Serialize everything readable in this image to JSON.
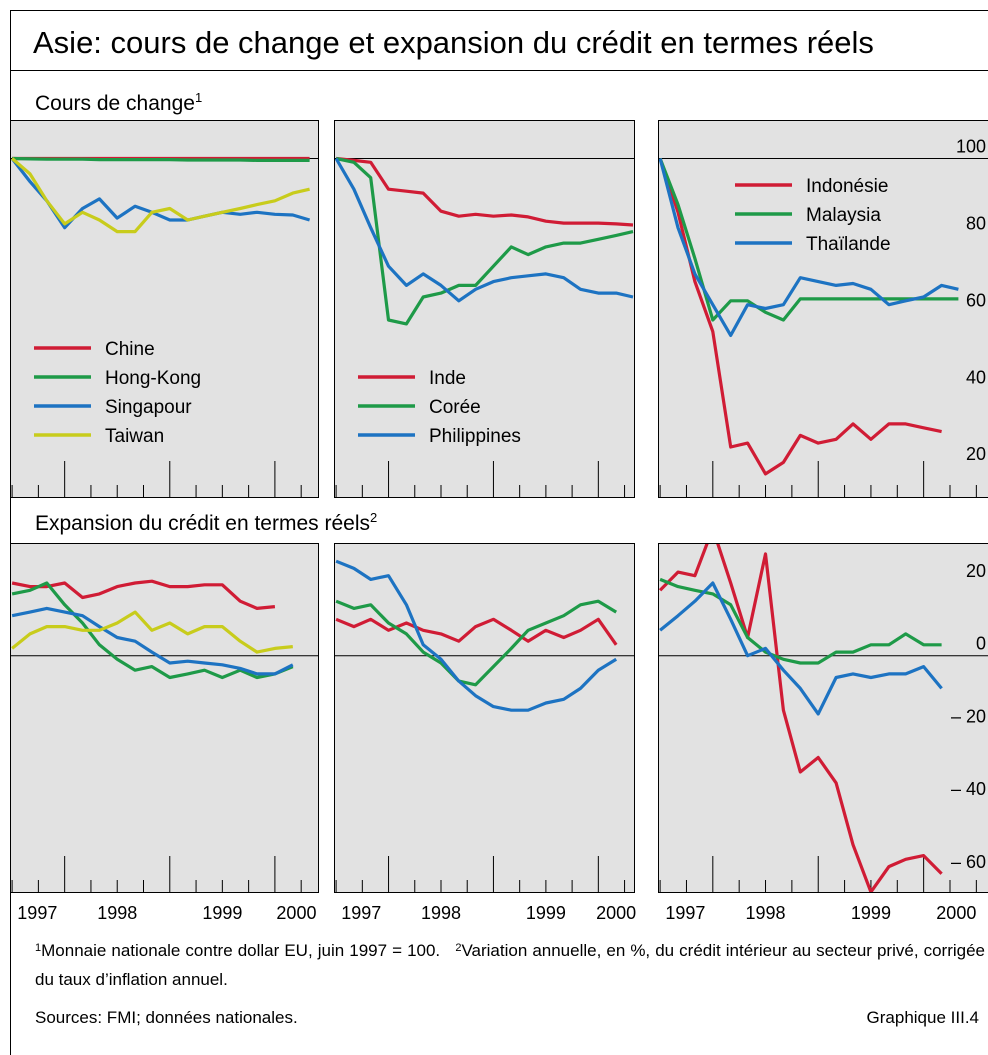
{
  "title": "Asie: cours de change et expansion du crédit en termes réels",
  "sections": [
    {
      "title": "Cours de change",
      "mark": "1"
    },
    {
      "title": "Expansion du crédit en termes réels",
      "mark": "2"
    }
  ],
  "footnotes": [
    {
      "mark": "1",
      "text": "Monnaie nationale contre dollar EU, juin 1997 = 100."
    },
    {
      "mark": "2",
      "text": "Variation annuelle, en %, du crédit intérieur au secteur privé, corrigée du taux d’inflation annuel."
    }
  ],
  "sources": "Sources: FMI; données nationales.",
  "figure_label": "Graphique III.4",
  "chart_data": [
    {
      "type": "line",
      "x": [
        1997.5,
        1997.67,
        1997.83,
        1998,
        1998.17,
        1998.33,
        1998.5,
        1998.67,
        1998.83,
        1999,
        1999.17,
        1999.33,
        1999.5,
        1999.67,
        1999.83,
        2000,
        2000.17,
        2000.33
      ],
      "xlim": [
        1997.48,
        2000.41
      ],
      "xticks": [
        1998,
        1999,
        2000
      ],
      "xminorticks": [
        1997.5,
        1997.75,
        1998.25,
        1998.5,
        1998.75,
        1999.25,
        1999.5,
        1999.75,
        2000.25,
        2000.5
      ],
      "ylim": [
        12,
        110
      ],
      "hline": 100,
      "legend": "lower-left",
      "series": [
        {
          "name": "Chine",
          "color": "#d01c35",
          "values": [
            100,
            100,
            100,
            100,
            100,
            100,
            100,
            100,
            100,
            100,
            100,
            100,
            100,
            100,
            100,
            100,
            100,
            100
          ]
        },
        {
          "name": "Hong-Kong",
          "color": "#1e9a48",
          "values": [
            100,
            99.9,
            99.8,
            99.8,
            99.8,
            99.7,
            99.7,
            99.7,
            99.7,
            99.7,
            99.6,
            99.6,
            99.6,
            99.6,
            99.5,
            99.5,
            99.5,
            99.5
          ]
        },
        {
          "name": "Singapour",
          "color": "#1d73c2",
          "values": [
            100,
            94,
            89,
            82,
            87,
            89.5,
            84.5,
            87.6,
            86,
            84,
            84,
            85,
            86,
            85.5,
            86,
            85.5,
            85.3,
            84
          ]
        },
        {
          "name": "Taiwan",
          "color": "#c8cc1c",
          "values": [
            100,
            96,
            89,
            83,
            86,
            84,
            81,
            81,
            86,
            87,
            84,
            85,
            86,
            87,
            88,
            89,
            91,
            92
          ]
        }
      ]
    },
    {
      "type": "line",
      "x": [
        1997.5,
        1997.67,
        1997.83,
        1998,
        1998.17,
        1998.33,
        1998.5,
        1998.67,
        1998.83,
        1999,
        1999.17,
        1999.33,
        1999.5,
        1999.67,
        1999.83,
        2000,
        2000.17,
        2000.33
      ],
      "xlim": [
        1997.48,
        2000.34
      ],
      "xticks": [
        1998,
        1999,
        2000
      ],
      "xminorticks": [
        1997.5,
        1997.75,
        1998.25,
        1998.5,
        1998.75,
        1999.25,
        1999.5,
        1999.75,
        2000.25,
        2000.5
      ],
      "ylim": [
        12,
        110
      ],
      "hline": 100,
      "legend": "lower-left",
      "series": [
        {
          "name": "Inde",
          "color": "#d01c35",
          "values": [
            100,
            99.5,
            99,
            92,
            91.5,
            91,
            86.3,
            85,
            85.5,
            85,
            85.3,
            84.8,
            83.7,
            83.2,
            83.2,
            83.2,
            83,
            82.7
          ]
        },
        {
          "name": "Corée",
          "color": "#1e9a48",
          "values": [
            100,
            99,
            95,
            58,
            57,
            64,
            65,
            67,
            67,
            72,
            77,
            75,
            77,
            78,
            78,
            79,
            80,
            81
          ]
        },
        {
          "name": "Philippines",
          "color": "#1d73c2",
          "values": [
            100,
            92,
            82,
            72,
            67,
            70,
            67,
            63,
            66,
            68,
            69,
            69.5,
            70,
            69,
            66,
            65,
            65,
            64
          ]
        }
      ]
    },
    {
      "type": "line",
      "x": [
        1997.5,
        1997.67,
        1997.83,
        1998,
        1998.17,
        1998.33,
        1998.5,
        1998.67,
        1998.83,
        1999,
        1999.17,
        1999.33,
        1999.5,
        1999.67,
        1999.83,
        2000,
        2000.17,
        2000.33
      ],
      "xlim": [
        1997.48,
        2000.62
      ],
      "xticks": [
        1998,
        1999,
        2000
      ],
      "xminorticks": [
        1997.5,
        1997.75,
        1998.25,
        1998.5,
        1998.75,
        1999.25,
        1999.5,
        1999.75,
        2000.25,
        2000.5
      ],
      "ylim": [
        12,
        110
      ],
      "yticks": [
        20,
        40,
        60,
        80,
        100
      ],
      "hline": 100,
      "legend": "upper-right",
      "series": [
        {
          "name": "Indonésie",
          "color": "#d01c35",
          "values": [
            100,
            86,
            68,
            55,
            25,
            26,
            18,
            21,
            28,
            26,
            27,
            31,
            27,
            31,
            31,
            30,
            29,
            null
          ]
        },
        {
          "name": "Malaysia",
          "color": "#1e9a48",
          "values": [
            100,
            88,
            74,
            58,
            63,
            63,
            60,
            58,
            63.5,
            63.5,
            63.5,
            63.5,
            63.5,
            63.5,
            63.5,
            63.5,
            63.5,
            63.5
          ]
        },
        {
          "name": "Thaïlande",
          "color": "#1d73c2",
          "values": [
            100,
            82,
            70,
            62,
            54,
            62,
            61,
            62,
            69,
            68,
            67,
            67.5,
            66,
            62,
            63,
            64,
            67,
            66
          ]
        }
      ]
    },
    {
      "type": "line",
      "x": [
        1997.5,
        1997.67,
        1997.83,
        1998,
        1998.17,
        1998.33,
        1998.5,
        1998.67,
        1998.83,
        1999,
        1999.17,
        1999.33,
        1999.5,
        1999.67,
        1999.83,
        2000,
        2000.17,
        2000.33
      ],
      "xlim": [
        1997.48,
        2000.41
      ],
      "xticks": [
        1998,
        1999,
        2000
      ],
      "xminorticks": [
        1997.5,
        1997.75,
        1998.25,
        1998.5,
        1998.75,
        1999.25,
        1999.5,
        1999.75,
        2000.25,
        2000.5
      ],
      "xlabels": [
        "1997",
        "1998",
        "1999",
        "2000"
      ],
      "ylim": [
        -65,
        31
      ],
      "hline": 0,
      "series": [
        {
          "color": "#d01c35",
          "values": [
            20,
            19,
            19,
            20,
            16,
            17,
            19,
            20,
            20.5,
            19,
            19,
            19.5,
            19.5,
            15,
            13,
            13.5,
            null,
            null
          ]
        },
        {
          "color": "#1e9a48",
          "values": [
            17,
            18,
            20,
            14,
            9,
            3,
            -1,
            -4,
            -3,
            -6,
            -5,
            -4,
            -6,
            -4,
            -6,
            -5,
            -3,
            null
          ]
        },
        {
          "color": "#1d73c2",
          "values": [
            11,
            12,
            13,
            12,
            11,
            8,
            5,
            4,
            1,
            -2,
            -1.5,
            -2,
            -2.5,
            -3.5,
            -5,
            -5,
            -2.5,
            null
          ]
        },
        {
          "color": "#c8cc1c",
          "values": [
            2,
            6,
            8,
            8,
            7,
            7,
            9,
            12,
            7,
            9,
            6,
            8,
            8,
            4,
            1,
            2,
            2.5,
            null
          ]
        }
      ]
    },
    {
      "type": "line",
      "x": [
        1997.5,
        1997.67,
        1997.83,
        1998,
        1998.17,
        1998.33,
        1998.5,
        1998.67,
        1998.83,
        1999,
        1999.17,
        1999.33,
        1999.5,
        1999.67,
        1999.83,
        2000,
        2000.17,
        2000.33
      ],
      "xlim": [
        1997.48,
        2000.34
      ],
      "xticks": [
        1998,
        1999,
        2000
      ],
      "xminorticks": [
        1997.5,
        1997.75,
        1998.25,
        1998.5,
        1998.75,
        1999.25,
        1999.5,
        1999.75,
        2000.25,
        2000.5
      ],
      "xlabels": [
        "1997",
        "1998",
        "1999",
        "2000"
      ],
      "ylim": [
        -65,
        31
      ],
      "hline": 0,
      "series": [
        {
          "color": "#d01c35",
          "values": [
            10,
            8,
            10,
            7,
            9,
            7,
            6,
            4,
            8,
            10,
            7,
            4,
            7,
            5,
            7,
            10,
            3,
            null
          ]
        },
        {
          "color": "#1e9a48",
          "values": [
            15,
            13,
            14,
            9,
            6,
            1,
            -2,
            -7,
            -8,
            -3,
            2,
            7,
            9,
            11,
            14,
            15,
            12,
            null
          ]
        },
        {
          "color": "#1d73c2",
          "values": [
            26,
            24,
            21,
            22,
            14,
            3,
            -1,
            -7,
            -11,
            -14,
            -15,
            -15,
            -13,
            -12,
            -9,
            -4,
            -1,
            null
          ]
        }
      ]
    },
    {
      "type": "line",
      "x": [
        1997.5,
        1997.67,
        1997.83,
        1998,
        1998.17,
        1998.33,
        1998.5,
        1998.67,
        1998.83,
        1999,
        1999.17,
        1999.33,
        1999.5,
        1999.67,
        1999.83,
        2000,
        2000.17,
        2000.33
      ],
      "xlim": [
        1997.48,
        2000.62
      ],
      "xticks": [
        1998,
        1999,
        2000
      ],
      "xminorticks": [
        1997.5,
        1997.75,
        1998.25,
        1998.5,
        1998.75,
        1999.25,
        1999.5,
        1999.75,
        2000.25,
        2000.5
      ],
      "xlabels": [
        "1997",
        "1998",
        "1999",
        "2000"
      ],
      "ylim": [
        -65,
        31
      ],
      "yticks": [
        20,
        0,
        {
          "value": -20,
          "label": "– 20"
        },
        {
          "value": -40,
          "label": "– 40"
        },
        {
          "value": -60,
          "label": "– 60"
        }
      ],
      "hline": 0,
      "series": [
        {
          "color": "#d01c35",
          "values": [
            18,
            23,
            22,
            35,
            20,
            5,
            28,
            -15,
            -32,
            -28,
            -35,
            -52,
            -65,
            -58,
            -56,
            -55,
            -60,
            null
          ]
        },
        {
          "color": "#1e9a48",
          "values": [
            21,
            19,
            18,
            17,
            14,
            5,
            1,
            -1,
            -2,
            -2,
            1,
            1,
            3,
            3,
            6,
            3,
            3,
            null
          ]
        },
        {
          "color": "#1d73c2",
          "values": [
            7,
            11,
            15,
            20,
            10,
            0,
            2,
            -4,
            -9,
            -16,
            -6,
            -5,
            -6,
            -5,
            -5,
            -3,
            -9,
            null
          ]
        }
      ]
    }
  ]
}
